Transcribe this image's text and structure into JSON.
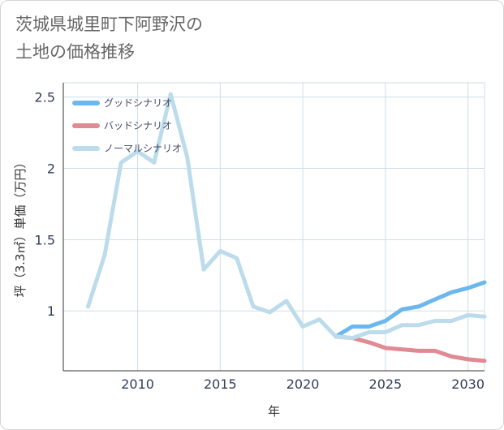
{
  "title_line1": "茨城県城里町下阿野沢の",
  "title_line2": "土地の価格推移",
  "colors": {
    "good": "#6cb8ec",
    "bad": "#e08a92",
    "normal": "#bcdcec",
    "grid": "#cfdde6",
    "axis": "#333333"
  },
  "chart_data": {
    "type": "line",
    "title": "茨城県城里町下阿野沢の土地の価格推移",
    "xlabel": "年",
    "ylabel": "坪（3.3㎡）単価（万円）",
    "xlim": [
      2005.5,
      2031
    ],
    "ylim": [
      0.58,
      2.6
    ],
    "x_ticks": [
      2010,
      2015,
      2020,
      2025,
      2030
    ],
    "x_tick_labels": [
      "2010",
      "2015",
      "2020",
      "2025",
      "2030"
    ],
    "y_ticks": [
      1,
      1.5,
      2,
      2.5
    ],
    "y_tick_labels": [
      "1",
      "1.5",
      "2",
      "2.5"
    ],
    "grid": true,
    "legend_position": "top-left",
    "series": [
      {
        "name": "グッドシナリオ",
        "key": "good",
        "x": [
          2022,
          2023,
          2024,
          2025,
          2026,
          2027,
          2028,
          2029,
          2030,
          2031
        ],
        "values": [
          0.82,
          0.89,
          0.89,
          0.93,
          1.01,
          1.03,
          1.08,
          1.13,
          1.16,
          1.2
        ]
      },
      {
        "name": "バッドシナリオ",
        "key": "bad",
        "x": [
          2022,
          2023,
          2024,
          2025,
          2026,
          2027,
          2028,
          2029,
          2030,
          2031
        ],
        "values": [
          0.82,
          0.81,
          0.78,
          0.74,
          0.73,
          0.72,
          0.72,
          0.68,
          0.66,
          0.65
        ]
      },
      {
        "name": "ノーマルシナリオ",
        "key": "normal",
        "x": [
          2007,
          2008,
          2009,
          2010,
          2011,
          2012,
          2013,
          2014,
          2015,
          2016,
          2017,
          2018,
          2019,
          2020,
          2021,
          2022,
          2023,
          2024,
          2025,
          2026,
          2027,
          2028,
          2029,
          2030,
          2031
        ],
        "values": [
          1.03,
          1.39,
          2.04,
          2.12,
          2.04,
          2.52,
          2.08,
          1.29,
          1.42,
          1.37,
          1.03,
          0.99,
          1.07,
          0.89,
          0.94,
          0.82,
          0.81,
          0.85,
          0.85,
          0.9,
          0.9,
          0.93,
          0.93,
          0.97,
          0.96
        ]
      }
    ]
  }
}
